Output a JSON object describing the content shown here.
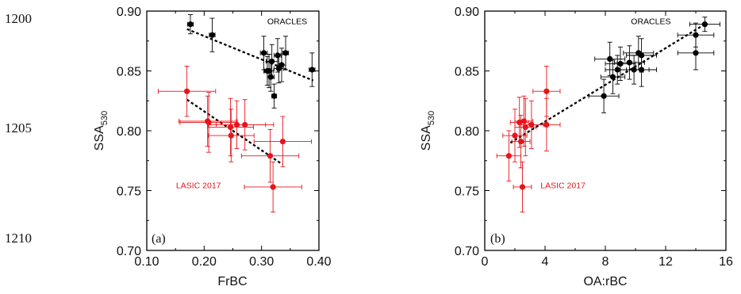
{
  "line_numbers": [
    "1200",
    "1205",
    "1210"
  ],
  "chart_data": [
    {
      "type": "scatter",
      "panel_label": "(a)",
      "xlabel": "FrBC",
      "ylabel_main": "SSA",
      "ylabel_sub": "530",
      "xlim": [
        0.1,
        0.4
      ],
      "ylim": [
        0.7,
        0.9
      ],
      "xticks": [
        "0.10",
        "0.20",
        "0.30",
        "0.40"
      ],
      "xtick_values": [
        0.1,
        0.2,
        0.3,
        0.4
      ],
      "yticks": [
        "0.70",
        "0.75",
        "0.80",
        "0.85",
        "0.90"
      ],
      "ytick_values": [
        0.7,
        0.75,
        0.8,
        0.85,
        0.9
      ],
      "grid": false,
      "series": [
        {
          "name": "ORACLES",
          "color": "#000000",
          "label_at": [
            0.31,
            0.889
          ],
          "points": [
            {
              "x": 0.176,
              "y": 0.889,
              "xerr": 0.005,
              "yerr": 0.008
            },
            {
              "x": 0.214,
              "y": 0.88,
              "xerr": 0.005,
              "yerr": 0.014
            },
            {
              "x": 0.304,
              "y": 0.865,
              "xerr": 0.006,
              "yerr": 0.014
            },
            {
              "x": 0.31,
              "y": 0.85,
              "xerr": 0.006,
              "yerr": 0.012
            },
            {
              "x": 0.313,
              "y": 0.85,
              "xerr": 0.008,
              "yerr": 0.014
            },
            {
              "x": 0.316,
              "y": 0.845,
              "xerr": 0.006,
              "yerr": 0.012
            },
            {
              "x": 0.318,
              "y": 0.858,
              "xerr": 0.01,
              "yerr": 0.014
            },
            {
              "x": 0.322,
              "y": 0.829,
              "xerr": 0.004,
              "yerr": 0.01
            },
            {
              "x": 0.328,
              "y": 0.863,
              "xerr": 0.006,
              "yerr": 0.014
            },
            {
              "x": 0.33,
              "y": 0.852,
              "xerr": 0.008,
              "yerr": 0.012
            },
            {
              "x": 0.335,
              "y": 0.855,
              "xerr": 0.007,
              "yerr": 0.014
            },
            {
              "x": 0.342,
              "y": 0.865,
              "xerr": 0.005,
              "yerr": 0.014
            },
            {
              "x": 0.388,
              "y": 0.851,
              "xerr": 0.005,
              "yerr": 0.014
            }
          ],
          "fit": {
            "x": [
              0.17,
              0.39
            ],
            "y": [
              0.885,
              0.842
            ]
          }
        },
        {
          "name": "LASIC 2017",
          "color": "#e8141b",
          "label_at": [
            0.151,
            0.752
          ],
          "points": [
            {
              "x": 0.17,
              "y": 0.833,
              "xerr": 0.05,
              "yerr": 0.021
            },
            {
              "x": 0.206,
              "y": 0.808,
              "xerr": 0.05,
              "yerr": 0.021
            },
            {
              "x": 0.208,
              "y": 0.807,
              "xerr": 0.05,
              "yerr": 0.025
            },
            {
              "x": 0.247,
              "y": 0.796,
              "xerr": 0.04,
              "yerr": 0.022
            },
            {
              "x": 0.246,
              "y": 0.803,
              "xerr": 0.04,
              "yerr": 0.024
            },
            {
              "x": 0.257,
              "y": 0.805,
              "xerr": 0.05,
              "yerr": 0.02
            },
            {
              "x": 0.271,
              "y": 0.805,
              "xerr": 0.05,
              "yerr": 0.021
            },
            {
              "x": 0.315,
              "y": 0.779,
              "xerr": 0.05,
              "yerr": 0.022
            },
            {
              "x": 0.32,
              "y": 0.753,
              "xerr": 0.05,
              "yerr": 0.021
            },
            {
              "x": 0.337,
              "y": 0.791,
              "xerr": 0.05,
              "yerr": 0.021
            }
          ],
          "fit": {
            "x": [
              0.17,
              0.336
            ],
            "y": [
              0.826,
              0.772
            ]
          }
        }
      ]
    },
    {
      "type": "scatter",
      "panel_label": "(b)",
      "xlabel": "OA:rBC",
      "ylabel_main": "SSA",
      "ylabel_sub": "530",
      "xlim": [
        0,
        16
      ],
      "ylim": [
        0.7,
        0.9
      ],
      "xticks": [
        "0",
        "4",
        "8",
        "12",
        "16"
      ],
      "xtick_values": [
        0,
        4,
        8,
        12,
        16
      ],
      "yticks": [
        "0.70",
        "0.75",
        "0.80",
        "0.85",
        "0.90"
      ],
      "ytick_values": [
        0.7,
        0.75,
        0.8,
        0.85,
        0.9
      ],
      "grid": false,
      "series": [
        {
          "name": "ORACLES",
          "color": "#000000",
          "label_at": [
            9.7,
            0.889
          ],
          "points": [
            {
              "x": 7.9,
              "y": 0.829,
              "xerr": 1.0,
              "yerr": 0.014
            },
            {
              "x": 8.3,
              "y": 0.86,
              "xerr": 1.0,
              "yerr": 0.014
            },
            {
              "x": 8.5,
              "y": 0.845,
              "xerr": 0.8,
              "yerr": 0.014
            },
            {
              "x": 8.8,
              "y": 0.851,
              "xerr": 0.8,
              "yerr": 0.012
            },
            {
              "x": 9.0,
              "y": 0.856,
              "xerr": 1.0,
              "yerr": 0.014
            },
            {
              "x": 9.6,
              "y": 0.857,
              "xerr": 1.0,
              "yerr": 0.014
            },
            {
              "x": 9.9,
              "y": 0.851,
              "xerr": 1.0,
              "yerr": 0.012
            },
            {
              "x": 10.2,
              "y": 0.865,
              "xerr": 1.0,
              "yerr": 0.014
            },
            {
              "x": 10.4,
              "y": 0.863,
              "xerr": 1.0,
              "yerr": 0.014
            },
            {
              "x": 10.4,
              "y": 0.851,
              "xerr": 1.0,
              "yerr": 0.014
            },
            {
              "x": 14.0,
              "y": 0.88,
              "xerr": 1.2,
              "yerr": 0.01
            },
            {
              "x": 14.0,
              "y": 0.865,
              "xerr": 1.2,
              "yerr": 0.014
            },
            {
              "x": 14.6,
              "y": 0.889,
              "xerr": 1.0,
              "yerr": 0.006
            }
          ],
          "fit": {
            "x": [
              1.7,
              14.6
            ],
            "y": [
              0.79,
              0.889
            ]
          }
        },
        {
          "name": "LASIC 2017",
          "color": "#e8141b",
          "label_at": [
            3.7,
            0.752
          ],
          "points": [
            {
              "x": 1.6,
              "y": 0.779,
              "xerr": 0.8,
              "yerr": 0.021
            },
            {
              "x": 2.0,
              "y": 0.796,
              "xerr": 0.8,
              "yerr": 0.022
            },
            {
              "x": 2.3,
              "y": 0.807,
              "xerr": 0.6,
              "yerr": 0.021
            },
            {
              "x": 2.4,
              "y": 0.791,
              "xerr": 0.6,
              "yerr": 0.022
            },
            {
              "x": 2.5,
              "y": 0.753,
              "xerr": 0.6,
              "yerr": 0.021
            },
            {
              "x": 2.6,
              "y": 0.808,
              "xerr": 0.6,
              "yerr": 0.021
            },
            {
              "x": 2.7,
              "y": 0.803,
              "xerr": 0.7,
              "yerr": 0.024
            },
            {
              "x": 3.1,
              "y": 0.805,
              "xerr": 0.8,
              "yerr": 0.02
            },
            {
              "x": 4.1,
              "y": 0.833,
              "xerr": 0.9,
              "yerr": 0.021
            },
            {
              "x": 4.1,
              "y": 0.805,
              "xerr": 0.9,
              "yerr": 0.022
            }
          ]
        }
      ]
    }
  ]
}
